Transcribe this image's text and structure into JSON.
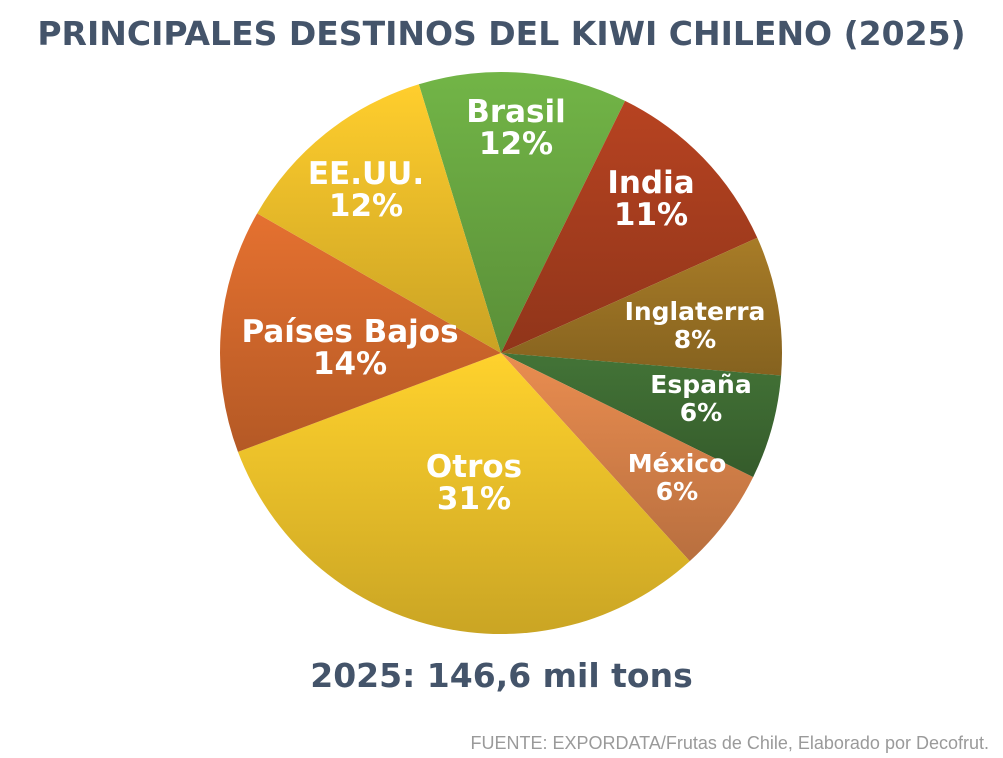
{
  "chart_data": {
    "type": "pie",
    "title": "PRINCIPALES DESTINOS DEL KIWI CHILENO (2025)",
    "subtitle": "2025: 146,6 mil tons",
    "source": "FUENTE: EXPORDATA/Frutas de Chile, Elaborado por Decofrut.",
    "unit": "%",
    "slices": [
      {
        "label": "Brasil",
        "value": 12,
        "display": "12%",
        "color": "#6aa842"
      },
      {
        "label": "India",
        "value": 11,
        "display": "11%",
        "color": "#a93e1f"
      },
      {
        "label": "Inglaterra",
        "value": 8,
        "display": "8%",
        "color": "#9c7324"
      },
      {
        "label": "España",
        "value": 6,
        "display": "6%",
        "color": "#3e6b33"
      },
      {
        "label": "México",
        "value": 6,
        "display": "6%",
        "color": "#d9834a"
      },
      {
        "label": "Otros",
        "value": 31,
        "display": "31%",
        "color": "#eec22a"
      },
      {
        "label": "Países Bajos",
        "value": 14,
        "display": "14%",
        "color": "#d4692c"
      },
      {
        "label": "EE.UU.",
        "value": 12,
        "display": "12%",
        "color": "#eebf2a"
      }
    ]
  }
}
